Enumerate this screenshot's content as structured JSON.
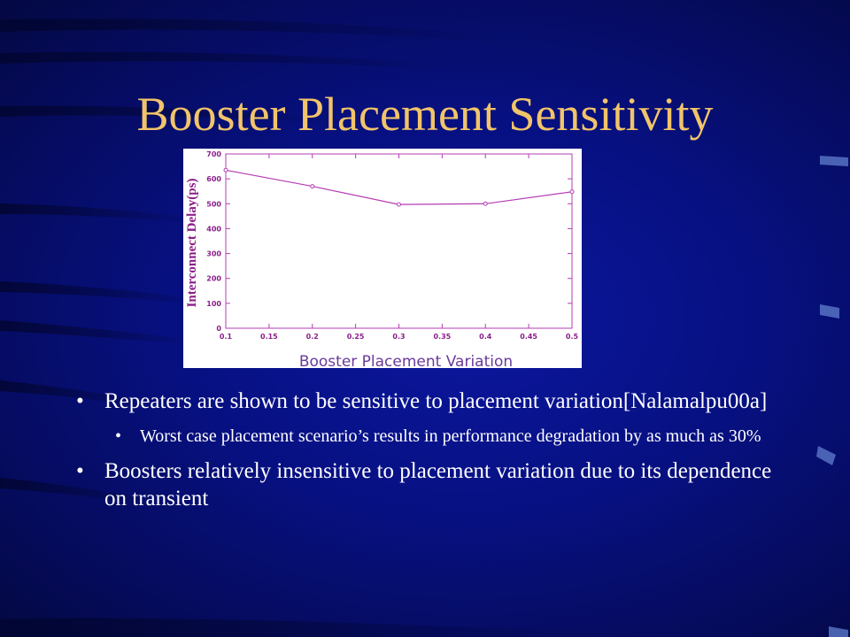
{
  "slide": {
    "title": "Booster Placement Sensitivity"
  },
  "bullets": [
    {
      "level": 1,
      "text": "Repeaters are shown to be sensitive to placement variation[Nalamalpu00a]"
    },
    {
      "level": 2,
      "text": "Worst case placement scenario’s results in performance degradation by as much as 30%"
    },
    {
      "level": 1,
      "text": "Boosters relatively insensitive to placement variation due to  its dependence on transient"
    }
  ],
  "bullet_glyph": "•",
  "colors": {
    "title": "#f2c46a",
    "text": "#ffffff",
    "background": "#071080",
    "plot_line": "#b43cb4",
    "axis_text": "#8a1e8a",
    "xlabel_text": "#6a3a9a"
  },
  "chart_data": {
    "type": "line",
    "x": [
      0.1,
      0.2,
      0.3,
      0.4,
      0.5
    ],
    "series": [
      {
        "values": [
          635,
          570,
          497,
          500,
          548
        ]
      }
    ],
    "xlabel": "Booster Placement Variation",
    "ylabel": "Interconnect Delay(ps)",
    "xlim": [
      0.1,
      0.5
    ],
    "ylim": [
      0,
      700
    ],
    "xticks": [
      "0.1",
      "0.15",
      "0.2",
      "0.25",
      "0.3",
      "0.35",
      "0.4",
      "0.45",
      "0.5"
    ],
    "yticks": [
      "0",
      "100",
      "200",
      "300",
      "400",
      "500",
      "600",
      "700"
    ],
    "grid": false,
    "markers": "circle"
  }
}
